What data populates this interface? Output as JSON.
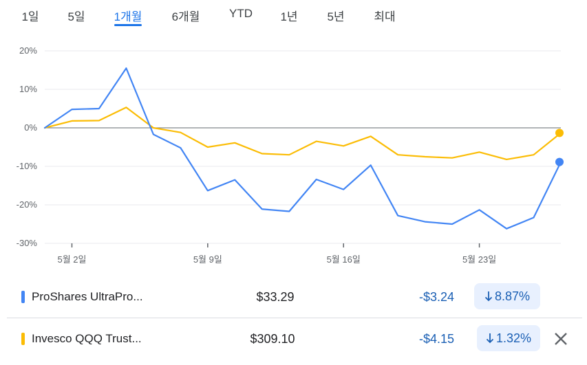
{
  "tabs": [
    {
      "label": "1일"
    },
    {
      "label": "5일"
    },
    {
      "label": "1개월"
    },
    {
      "label": "6개월"
    },
    {
      "label": "YTD"
    },
    {
      "label": "1년"
    },
    {
      "label": "5년"
    },
    {
      "label": "최대"
    }
  ],
  "active_tab": "1개월",
  "chart_data": {
    "type": "line",
    "y_ticks": [
      "20%",
      "10%",
      "0%",
      "-10%",
      "-20%",
      "-30%"
    ],
    "ylim": [
      -30,
      20
    ],
    "x_ticks": [
      "5월 2일",
      "5월 9일",
      "5월 16일",
      "5월 23일"
    ],
    "series": [
      {
        "name": "ProShares UltraPro...",
        "color": "#4285f4",
        "values": [
          0,
          4.8,
          5.0,
          15.5,
          -1.7,
          -5.2,
          -16.3,
          -13.5,
          -21.1,
          -21.7,
          -13.4,
          -16.0,
          -9.7,
          -22.8,
          -24.4,
          -25.0,
          -21.3,
          -26.2,
          -23.3,
          -8.87
        ]
      },
      {
        "name": "Invesco QQQ Trust...",
        "color": "#fbbc04",
        "values": [
          0,
          1.8,
          1.9,
          5.3,
          0.0,
          -1.2,
          -5.0,
          -3.9,
          -6.7,
          -7.0,
          -3.5,
          -4.7,
          -2.2,
          -7.0,
          -7.5,
          -7.8,
          -6.3,
          -8.2,
          -7.0,
          -1.32
        ]
      }
    ],
    "grid": true,
    "legend": "below"
  },
  "quotes": [
    {
      "name": "ProShares UltraPro...",
      "price": "$33.29",
      "change": "-$3.24",
      "percent": "8.87%",
      "color": "#4285f4"
    },
    {
      "name": "Invesco QQQ Trust...",
      "price": "$309.10",
      "change": "-$4.15",
      "percent": "1.32%",
      "color": "#fbbc04"
    }
  ]
}
